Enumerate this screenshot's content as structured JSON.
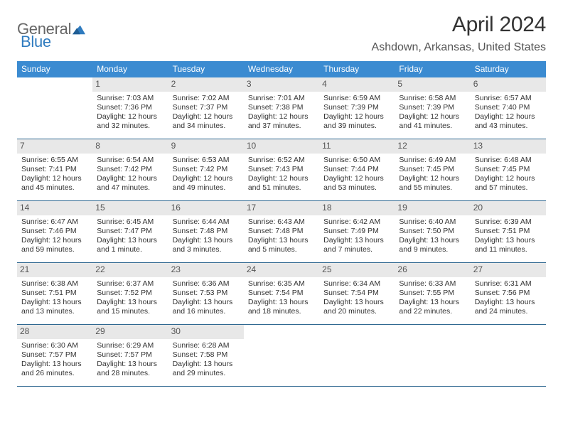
{
  "brand": {
    "part1": "General",
    "part2": "Blue"
  },
  "title": "April 2024",
  "location": "Ashdown, Arkansas, United States",
  "style": {
    "header_bg": "#3b8bd1",
    "header_fg": "#ffffff",
    "row_border": "#2f6891",
    "daynum_bg": "#e8e8e8",
    "daynum_fg": "#555555",
    "body_fg": "#333333",
    "page_bg": "#ffffff",
    "brand_gray": "#666666",
    "brand_blue": "#2f7bbf",
    "title_fontsize": 30,
    "location_fontsize": 16,
    "weekday_fontsize": 12,
    "daynum_fontsize": 12,
    "cell_fontsize": 10.5,
    "columns": 7
  },
  "weekdays": [
    "Sunday",
    "Monday",
    "Tuesday",
    "Wednesday",
    "Thursday",
    "Friday",
    "Saturday"
  ],
  "weeks": [
    [
      {
        "day": "",
        "empty": true
      },
      {
        "day": "1",
        "sunrise": "Sunrise: 7:03 AM",
        "sunset": "Sunset: 7:36 PM",
        "daylight1": "Daylight: 12 hours",
        "daylight2": "and 32 minutes."
      },
      {
        "day": "2",
        "sunrise": "Sunrise: 7:02 AM",
        "sunset": "Sunset: 7:37 PM",
        "daylight1": "Daylight: 12 hours",
        "daylight2": "and 34 minutes."
      },
      {
        "day": "3",
        "sunrise": "Sunrise: 7:01 AM",
        "sunset": "Sunset: 7:38 PM",
        "daylight1": "Daylight: 12 hours",
        "daylight2": "and 37 minutes."
      },
      {
        "day": "4",
        "sunrise": "Sunrise: 6:59 AM",
        "sunset": "Sunset: 7:39 PM",
        "daylight1": "Daylight: 12 hours",
        "daylight2": "and 39 minutes."
      },
      {
        "day": "5",
        "sunrise": "Sunrise: 6:58 AM",
        "sunset": "Sunset: 7:39 PM",
        "daylight1": "Daylight: 12 hours",
        "daylight2": "and 41 minutes."
      },
      {
        "day": "6",
        "sunrise": "Sunrise: 6:57 AM",
        "sunset": "Sunset: 7:40 PM",
        "daylight1": "Daylight: 12 hours",
        "daylight2": "and 43 minutes."
      }
    ],
    [
      {
        "day": "7",
        "sunrise": "Sunrise: 6:55 AM",
        "sunset": "Sunset: 7:41 PM",
        "daylight1": "Daylight: 12 hours",
        "daylight2": "and 45 minutes."
      },
      {
        "day": "8",
        "sunrise": "Sunrise: 6:54 AM",
        "sunset": "Sunset: 7:42 PM",
        "daylight1": "Daylight: 12 hours",
        "daylight2": "and 47 minutes."
      },
      {
        "day": "9",
        "sunrise": "Sunrise: 6:53 AM",
        "sunset": "Sunset: 7:42 PM",
        "daylight1": "Daylight: 12 hours",
        "daylight2": "and 49 minutes."
      },
      {
        "day": "10",
        "sunrise": "Sunrise: 6:52 AM",
        "sunset": "Sunset: 7:43 PM",
        "daylight1": "Daylight: 12 hours",
        "daylight2": "and 51 minutes."
      },
      {
        "day": "11",
        "sunrise": "Sunrise: 6:50 AM",
        "sunset": "Sunset: 7:44 PM",
        "daylight1": "Daylight: 12 hours",
        "daylight2": "and 53 minutes."
      },
      {
        "day": "12",
        "sunrise": "Sunrise: 6:49 AM",
        "sunset": "Sunset: 7:45 PM",
        "daylight1": "Daylight: 12 hours",
        "daylight2": "and 55 minutes."
      },
      {
        "day": "13",
        "sunrise": "Sunrise: 6:48 AM",
        "sunset": "Sunset: 7:45 PM",
        "daylight1": "Daylight: 12 hours",
        "daylight2": "and 57 minutes."
      }
    ],
    [
      {
        "day": "14",
        "sunrise": "Sunrise: 6:47 AM",
        "sunset": "Sunset: 7:46 PM",
        "daylight1": "Daylight: 12 hours",
        "daylight2": "and 59 minutes."
      },
      {
        "day": "15",
        "sunrise": "Sunrise: 6:45 AM",
        "sunset": "Sunset: 7:47 PM",
        "daylight1": "Daylight: 13 hours",
        "daylight2": "and 1 minute."
      },
      {
        "day": "16",
        "sunrise": "Sunrise: 6:44 AM",
        "sunset": "Sunset: 7:48 PM",
        "daylight1": "Daylight: 13 hours",
        "daylight2": "and 3 minutes."
      },
      {
        "day": "17",
        "sunrise": "Sunrise: 6:43 AM",
        "sunset": "Sunset: 7:48 PM",
        "daylight1": "Daylight: 13 hours",
        "daylight2": "and 5 minutes."
      },
      {
        "day": "18",
        "sunrise": "Sunrise: 6:42 AM",
        "sunset": "Sunset: 7:49 PM",
        "daylight1": "Daylight: 13 hours",
        "daylight2": "and 7 minutes."
      },
      {
        "day": "19",
        "sunrise": "Sunrise: 6:40 AM",
        "sunset": "Sunset: 7:50 PM",
        "daylight1": "Daylight: 13 hours",
        "daylight2": "and 9 minutes."
      },
      {
        "day": "20",
        "sunrise": "Sunrise: 6:39 AM",
        "sunset": "Sunset: 7:51 PM",
        "daylight1": "Daylight: 13 hours",
        "daylight2": "and 11 minutes."
      }
    ],
    [
      {
        "day": "21",
        "sunrise": "Sunrise: 6:38 AM",
        "sunset": "Sunset: 7:51 PM",
        "daylight1": "Daylight: 13 hours",
        "daylight2": "and 13 minutes."
      },
      {
        "day": "22",
        "sunrise": "Sunrise: 6:37 AM",
        "sunset": "Sunset: 7:52 PM",
        "daylight1": "Daylight: 13 hours",
        "daylight2": "and 15 minutes."
      },
      {
        "day": "23",
        "sunrise": "Sunrise: 6:36 AM",
        "sunset": "Sunset: 7:53 PM",
        "daylight1": "Daylight: 13 hours",
        "daylight2": "and 16 minutes."
      },
      {
        "day": "24",
        "sunrise": "Sunrise: 6:35 AM",
        "sunset": "Sunset: 7:54 PM",
        "daylight1": "Daylight: 13 hours",
        "daylight2": "and 18 minutes."
      },
      {
        "day": "25",
        "sunrise": "Sunrise: 6:34 AM",
        "sunset": "Sunset: 7:54 PM",
        "daylight1": "Daylight: 13 hours",
        "daylight2": "and 20 minutes."
      },
      {
        "day": "26",
        "sunrise": "Sunrise: 6:33 AM",
        "sunset": "Sunset: 7:55 PM",
        "daylight1": "Daylight: 13 hours",
        "daylight2": "and 22 minutes."
      },
      {
        "day": "27",
        "sunrise": "Sunrise: 6:31 AM",
        "sunset": "Sunset: 7:56 PM",
        "daylight1": "Daylight: 13 hours",
        "daylight2": "and 24 minutes."
      }
    ],
    [
      {
        "day": "28",
        "sunrise": "Sunrise: 6:30 AM",
        "sunset": "Sunset: 7:57 PM",
        "daylight1": "Daylight: 13 hours",
        "daylight2": "and 26 minutes."
      },
      {
        "day": "29",
        "sunrise": "Sunrise: 6:29 AM",
        "sunset": "Sunset: 7:57 PM",
        "daylight1": "Daylight: 13 hours",
        "daylight2": "and 28 minutes."
      },
      {
        "day": "30",
        "sunrise": "Sunrise: 6:28 AM",
        "sunset": "Sunset: 7:58 PM",
        "daylight1": "Daylight: 13 hours",
        "daylight2": "and 29 minutes."
      },
      {
        "day": "",
        "empty": true
      },
      {
        "day": "",
        "empty": true
      },
      {
        "day": "",
        "empty": true
      },
      {
        "day": "",
        "empty": true
      }
    ]
  ]
}
